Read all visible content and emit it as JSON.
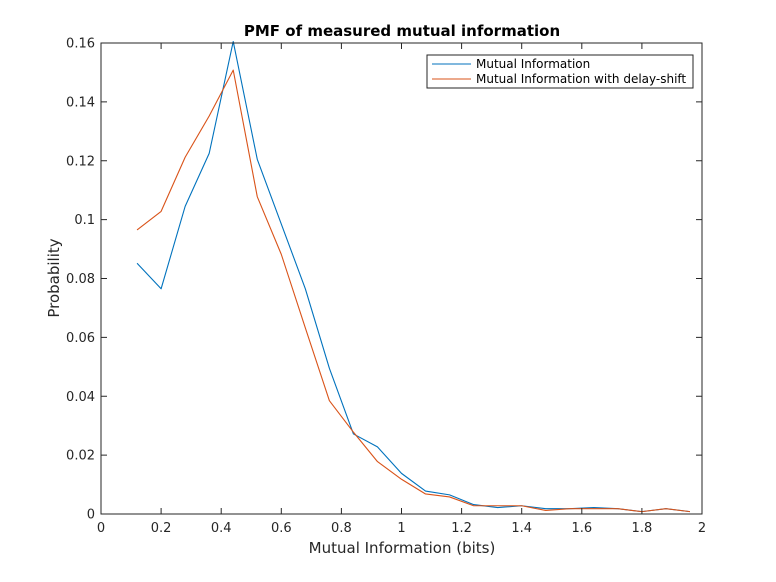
{
  "chart_data": {
    "type": "line",
    "title": "PMF of measured mutual information",
    "xlabel": "Mutual Information (bits)",
    "ylabel": "Probability",
    "xlim": [
      0,
      2
    ],
    "ylim": [
      0,
      0.16
    ],
    "xticks": [
      0,
      0.2,
      0.4,
      0.6,
      0.8,
      1,
      1.2,
      1.4,
      1.6,
      1.8,
      2
    ],
    "xtick_labels": [
      "0",
      "0.2",
      "0.4",
      "0.6",
      "0.8",
      "1",
      "1.2",
      "1.4",
      "1.6",
      "1.8",
      "2"
    ],
    "yticks": [
      0,
      0.02,
      0.04,
      0.06,
      0.08,
      0.1,
      0.12,
      0.14,
      0.16
    ],
    "ytick_labels": [
      "0",
      "0.02",
      "0.04",
      "0.06",
      "0.08",
      "0.1",
      "0.12",
      "0.14",
      "0.16"
    ],
    "grid": false,
    "legend_position": "top-right",
    "x": [
      0.12,
      0.2,
      0.28,
      0.36,
      0.44,
      0.52,
      0.6,
      0.68,
      0.76,
      0.84,
      0.92,
      1.0,
      1.08,
      1.16,
      1.24,
      1.32,
      1.4,
      1.48,
      1.56,
      1.64,
      1.72,
      1.8,
      1.88,
      1.96
    ],
    "series": [
      {
        "name": "Mutual Information",
        "color": "#0072BD",
        "values": [
          0.0852,
          0.0765,
          0.1045,
          0.1225,
          0.1605,
          0.1205,
          0.0985,
          0.0765,
          0.0495,
          0.0272,
          0.0228,
          0.0138,
          0.0078,
          0.0065,
          0.0032,
          0.0022,
          0.0028,
          0.0018,
          0.0018,
          0.0022,
          0.0018,
          0.0008,
          0.0018,
          0.0008
        ]
      },
      {
        "name": "Mutual Information with delay-shift",
        "color": "#D95319",
        "values": [
          0.0965,
          0.1028,
          0.1212,
          0.1352,
          0.1508,
          0.1078,
          0.0882,
          0.0632,
          0.0385,
          0.0278,
          0.0178,
          0.0118,
          0.0068,
          0.0058,
          0.0028,
          0.0028,
          0.0028,
          0.0012,
          0.0018,
          0.0018,
          0.0018,
          0.0008,
          0.0018,
          0.0008
        ]
      }
    ]
  }
}
